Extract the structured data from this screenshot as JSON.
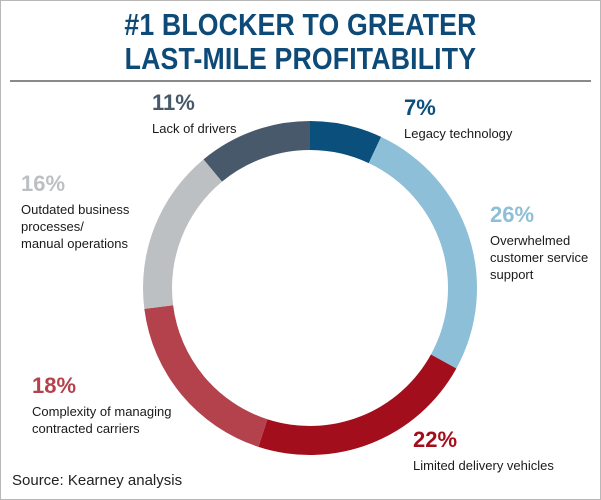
{
  "title_lines": [
    "#1 BLOCKER TO GREATER",
    "LAST-MILE PROFITABILITY"
  ],
  "source": "Source: Kearney analysis",
  "colors": {
    "title": "#0d4a78",
    "rule": "#8a8a8a"
  },
  "chart_data": {
    "type": "pie",
    "style": "donut",
    "start_angle_deg": 0,
    "direction": "clockwise",
    "slices": [
      {
        "value": 7,
        "pct_label": "7%",
        "label_lines": [
          "Legacy technology"
        ],
        "color": "#0b4f7c",
        "pct_color": "#0b4f7c"
      },
      {
        "value": 26,
        "pct_label": "26%",
        "label_lines": [
          "Overwhelmed",
          "customer service",
          "support"
        ],
        "color": "#8dbfd8",
        "pct_color": "#8dbfd8"
      },
      {
        "value": 22,
        "pct_label": "22%",
        "label_lines": [
          "Limited delivery vehicles"
        ],
        "color": "#a30e1c",
        "pct_color": "#a30e1c"
      },
      {
        "value": 18,
        "pct_label": "18%",
        "label_lines": [
          "Complexity of managing",
          "contracted carriers"
        ],
        "color": "#b3424d",
        "pct_color": "#b3424d"
      },
      {
        "value": 16,
        "pct_label": "16%",
        "label_lines": [
          "Outdated business",
          "processes/",
          "manual operations"
        ],
        "color": "#bcc0c3",
        "pct_color": "#bcc0c3"
      },
      {
        "value": 11,
        "pct_label": "11%",
        "label_lines": [
          "Lack of drivers"
        ],
        "color": "#47596a",
        "pct_color": "#47596a"
      }
    ]
  }
}
